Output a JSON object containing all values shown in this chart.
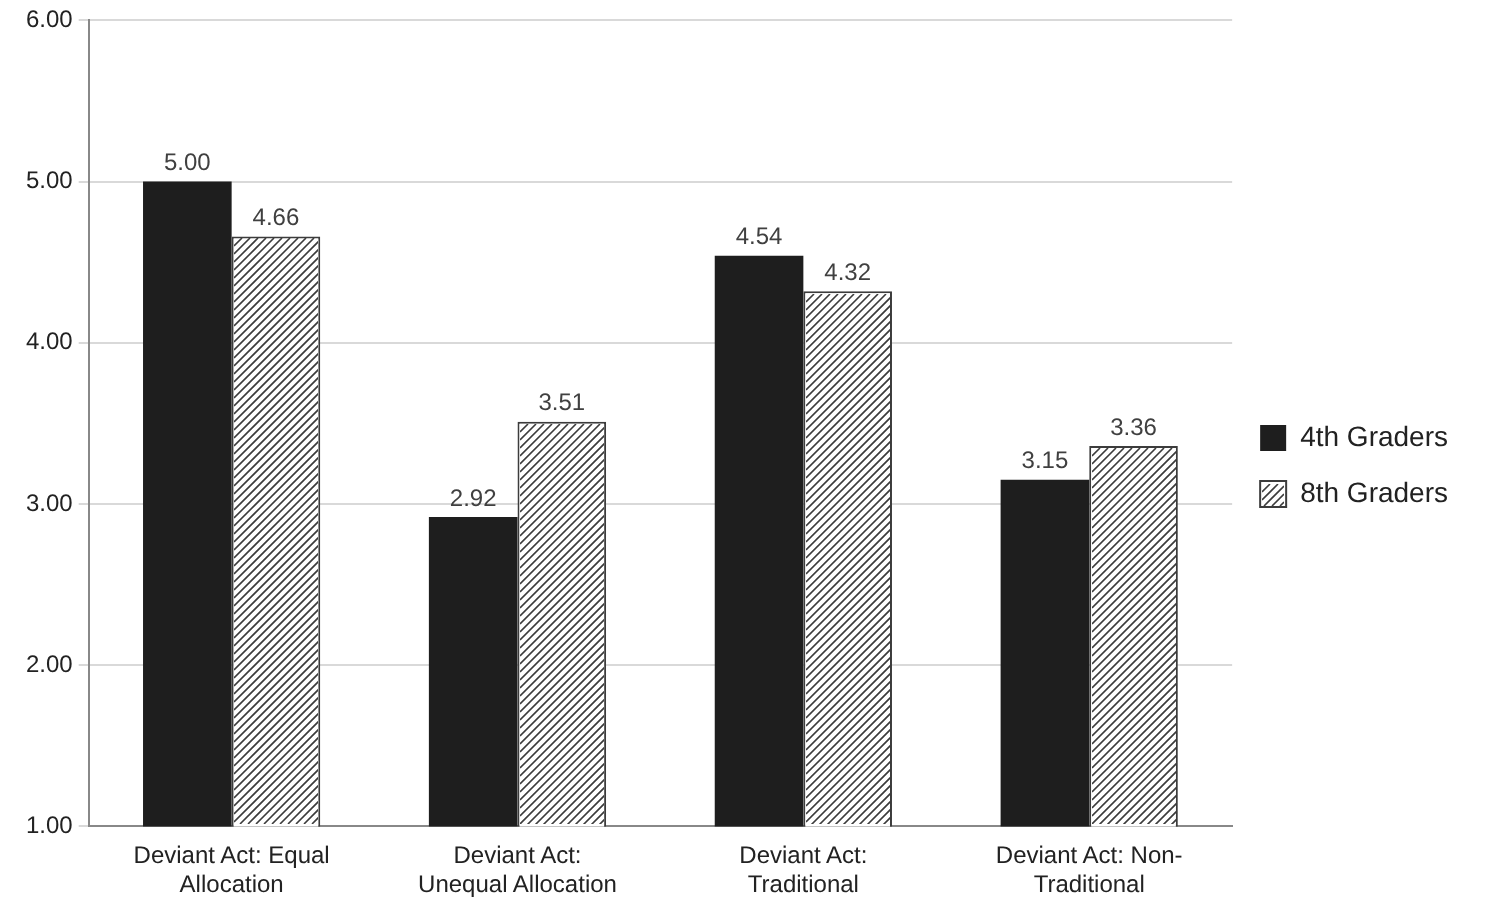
{
  "chart_data": {
    "type": "bar",
    "categories": [
      "Deviant Act: Equal Allocation",
      "Deviant Act: Unequal Allocation",
      "Deviant Act: Traditional",
      "Deviant Act: Non-Traditional"
    ],
    "series": [
      {
        "name": "4th Graders",
        "color": "#1e1e1e",
        "values": [
          5.0,
          2.92,
          4.54,
          3.15
        ],
        "value_labels": [
          "5.00",
          "2.92",
          "4.54",
          "3.15"
        ]
      },
      {
        "name": "8th Graders",
        "color": "#3c3c3c",
        "values": [
          4.66,
          3.51,
          4.32,
          3.36
        ],
        "value_labels": [
          "4.66",
          "3.51",
          "4.32",
          "3.36"
        ]
      }
    ],
    "ylim": [
      1,
      6
    ],
    "yticks": [
      {
        "value": 1,
        "label": "1.00"
      },
      {
        "value": 2,
        "label": "2.00"
      },
      {
        "value": 3,
        "label": "3.00"
      },
      {
        "value": 4,
        "label": "4.00"
      },
      {
        "value": 5,
        "label": "5.00"
      },
      {
        "value": 6,
        "label": "6.00"
      }
    ],
    "grid": "y",
    "legend": "right"
  }
}
